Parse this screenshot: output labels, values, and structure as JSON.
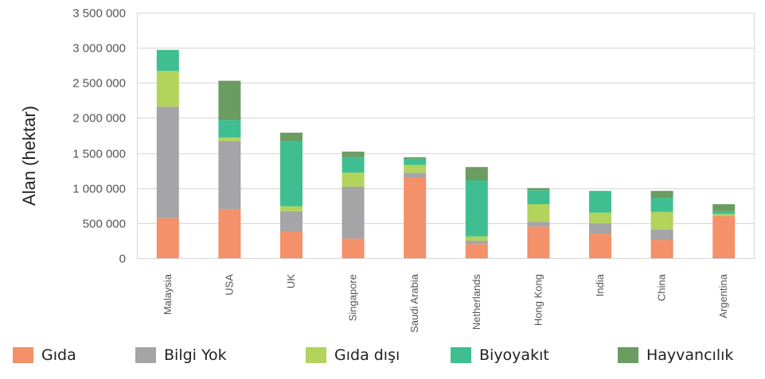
{
  "chart_data": {
    "type": "bar",
    "stacked": true,
    "title": "",
    "xlabel": "",
    "ylabel": "Alan (hektar)",
    "ylim": [
      0,
      3500000
    ],
    "yticks": [
      "0",
      "500 000",
      "1 000 000",
      "1 500 000",
      "2 000 000",
      "2 500 000",
      "3 000 000",
      "3 500 000"
    ],
    "ytick_values": [
      0,
      500000,
      1000000,
      1500000,
      2000000,
      2500000,
      3000000,
      3500000
    ],
    "grid": true,
    "legend_position": "bottom",
    "categories": [
      "Malaysia",
      "USA",
      "UK",
      "Singapore",
      "Saudi Arabia",
      "Netherlands",
      "Hong Kong",
      "India",
      "China",
      "Argentina"
    ],
    "series": [
      {
        "name": "Gıda",
        "color": "#f4906a",
        "values": [
          570000,
          700000,
          380000,
          280000,
          1150000,
          200000,
          450000,
          350000,
          260000,
          600000
        ]
      },
      {
        "name": "Bilgi Yok",
        "color": "#a5a5a7",
        "values": [
          1590000,
          970000,
          290000,
          740000,
          70000,
          50000,
          70000,
          150000,
          150000,
          0
        ]
      },
      {
        "name": "Gıda dışı",
        "color": "#b2d35c",
        "values": [
          510000,
          50000,
          70000,
          200000,
          110000,
          60000,
          250000,
          150000,
          250000,
          30000
        ]
      },
      {
        "name": "Biyoyakıt",
        "color": "#3fbf91",
        "values": [
          300000,
          250000,
          930000,
          220000,
          90000,
          800000,
          200000,
          310000,
          200000,
          40000
        ]
      },
      {
        "name": "Hayvancılık",
        "color": "#6b9c62",
        "values": [
          0,
          560000,
          120000,
          80000,
          20000,
          190000,
          30000,
          0,
          100000,
          100000
        ]
      }
    ]
  }
}
